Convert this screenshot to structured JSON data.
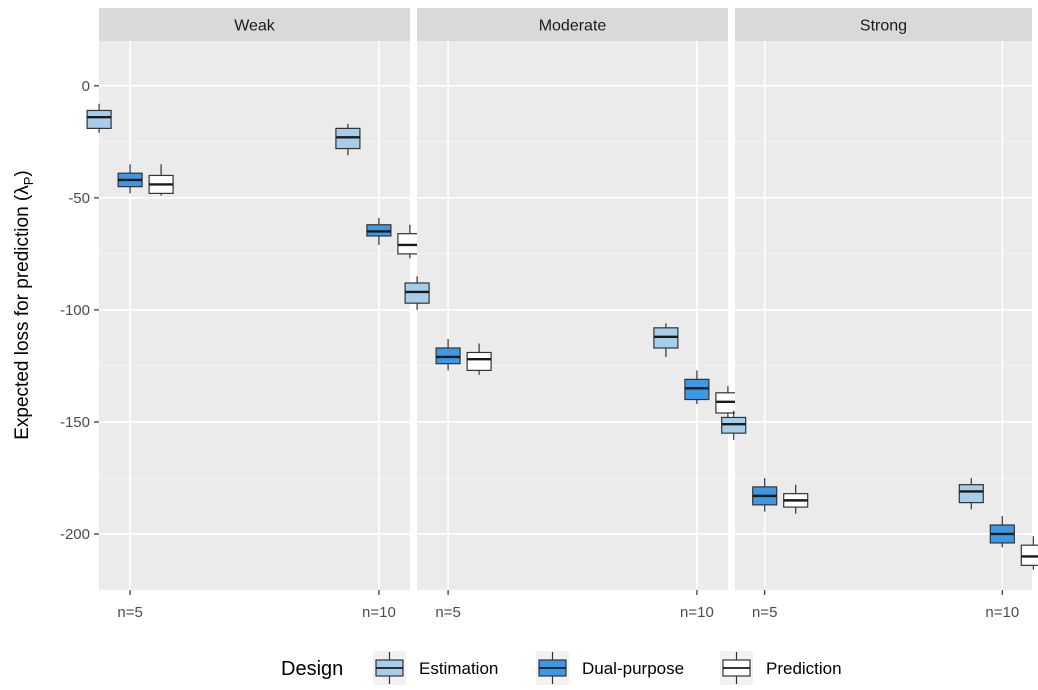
{
  "chart_data": {
    "type": "boxplot",
    "ylabel": "Expected loss for prediction (λ",
    "ylabel_sub": "P",
    "ylabel_close": ")",
    "ylim": [
      -225,
      20
    ],
    "yticks": [
      0,
      -50,
      -100,
      -150,
      -200
    ],
    "ytick_labels": [
      "0",
      "-50",
      "-100",
      "-150",
      "-200"
    ],
    "categories": [
      "n=5",
      "n=10"
    ],
    "facets": [
      "Weak",
      "Moderate",
      "Strong"
    ],
    "legend": {
      "title": "Design",
      "position": "bottom"
    },
    "grid": true,
    "series": [
      {
        "name": "Estimation",
        "color": "#a6cdea",
        "boxes": [
          [
            {
              "min": -21,
              "q1": -19,
              "median": -14,
              "q3": -11,
              "max": -8
            },
            {
              "min": -31,
              "q1": -28,
              "median": -23,
              "q3": -19,
              "max": -17
            }
          ],
          [
            {
              "min": -100,
              "q1": -97,
              "median": -92,
              "q3": -88,
              "max": -85
            },
            {
              "min": -121,
              "q1": -117,
              "median": -112,
              "q3": -108,
              "max": -106
            }
          ],
          [
            {
              "min": -158,
              "q1": -155,
              "median": -151,
              "q3": -148,
              "max": -145
            },
            {
              "min": -189,
              "q1": -186,
              "median": -181,
              "q3": -178,
              "max": -175
            }
          ]
        ]
      },
      {
        "name": "Dual-purpose",
        "color": "#3d99e6",
        "boxes": [
          [
            {
              "min": -48,
              "q1": -45,
              "median": -42,
              "q3": -39,
              "max": -35
            },
            {
              "min": -71,
              "q1": -67,
              "median": -65,
              "q3": -62,
              "max": -59
            }
          ],
          [
            {
              "min": -127,
              "q1": -124,
              "median": -121,
              "q3": -117,
              "max": -113
            },
            {
              "min": -142,
              "q1": -140,
              "median": -135,
              "q3": -131,
              "max": -127
            }
          ],
          [
            {
              "min": -190,
              "q1": -187,
              "median": -183,
              "q3": -179,
              "max": -175
            },
            {
              "min": -206,
              "q1": -204,
              "median": -200,
              "q3": -196,
              "max": -192
            }
          ]
        ]
      },
      {
        "name": "Prediction",
        "color": "#ffffff",
        "boxes": [
          [
            {
              "min": -49,
              "q1": -48,
              "median": -44,
              "q3": -40,
              "max": -35
            },
            {
              "min": -77,
              "q1": -75,
              "median": -71,
              "q3": -66,
              "max": -62
            }
          ],
          [
            {
              "min": -129,
              "q1": -127,
              "median": -122,
              "q3": -119,
              "max": -115
            },
            {
              "min": -148,
              "q1": -146,
              "median": -141,
              "q3": -137,
              "max": -134
            }
          ],
          [
            {
              "min": -191,
              "q1": -188,
              "median": -185,
              "q3": -182,
              "max": -178
            },
            {
              "min": -216,
              "q1": -214,
              "median": -210,
              "q3": -205,
              "max": -201
            }
          ]
        ]
      }
    ]
  }
}
